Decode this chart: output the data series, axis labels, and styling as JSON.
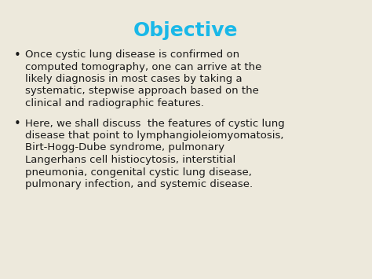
{
  "title": "Objective",
  "title_color": "#1AB8E8",
  "background_color": "#EDE9DC",
  "text_color": "#1A1A1A",
  "bullet1_lines": [
    "Once cystic lung disease is confirmed on",
    "computed tomography, one can arrive at the",
    "likely diagnosis in most cases by taking a",
    "systematic, stepwise approach based on the",
    "clinical and radiographic features."
  ],
  "bullet2_lines": [
    "Here, we shall discuss  the features of cystic lung",
    "disease that point to lymphangioleiomyomatosis,",
    "Birt-Hogg-Dube syndrome, pulmonary",
    "Langerhans cell histiocytosis, interstitial",
    "pneumonia, congenital cystic lung disease,",
    "pulmonary infection, and systemic disease."
  ],
  "title_fontsize": 18,
  "body_fontsize": 9.5,
  "bullet_symbol": "•",
  "figsize": [
    4.74,
    3.55
  ],
  "dpi": 100
}
